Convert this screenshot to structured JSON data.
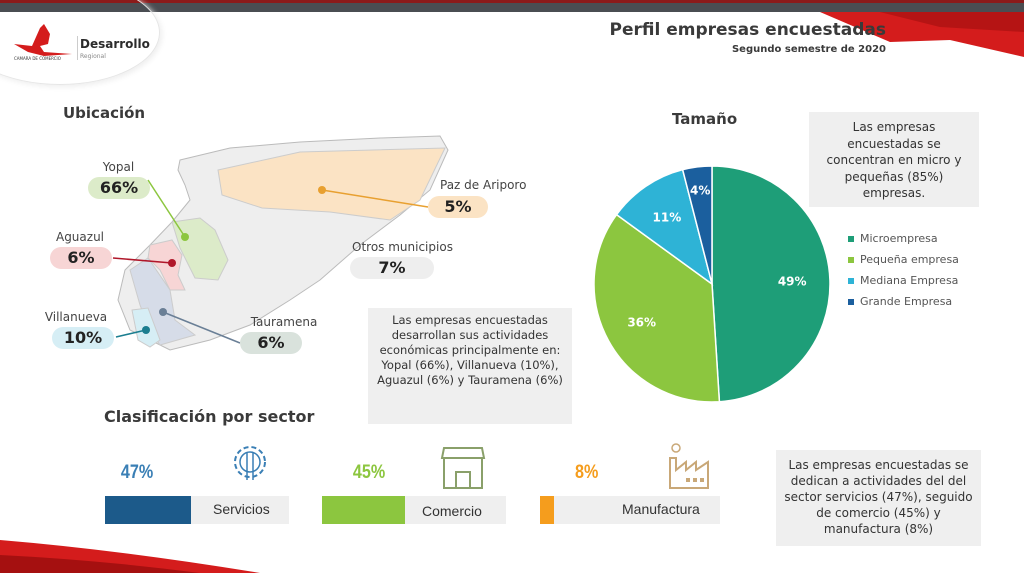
{
  "header": {
    "title": "Perfil empresas encuestadas",
    "subtitle": "Segundo semestre de 2020",
    "logo_text": "Desarrollo",
    "logo_sub": "Regional",
    "logo_org": "CAMARA DE COMERCIO CASANARE"
  },
  "ubicacion": {
    "title": "Ubicación",
    "items": [
      {
        "name": "Yopal",
        "value": "66%",
        "color": "#dcebc9"
      },
      {
        "name": "Aguazul",
        "value": "6%",
        "color": "#f7d5d5"
      },
      {
        "name": "Villanueva",
        "value": "10%",
        "color": "#d6eef5"
      },
      {
        "name": "Paz de Ariporo",
        "value": "5%",
        "color": "#fbe3c4"
      },
      {
        "name": "Otros municipios",
        "value": "7%",
        "color": "#eeeeee"
      },
      {
        "name": "Tauramena",
        "value": "6%",
        "color": "#d9e2dc"
      }
    ],
    "note": "Las empresas encuestadas desarrollan sus actividades económicas principalmente en: Yopal (66%), Villanueva (10%), Aguazul (6%) y Tauramena (6%)"
  },
  "tamano": {
    "title": "Tamaño",
    "note": "Las empresas encuestadas se concentran en micro y pequeñas (85%) empresas."
  },
  "chart_data": {
    "type": "pie",
    "title": "Tamaño",
    "categories": [
      "Microempresa",
      "Pequeña empresa",
      "Mediana Empresa",
      "Grande Empresa"
    ],
    "values": [
      49,
      36,
      11,
      4
    ],
    "labels": [
      "49%",
      "36%",
      "11%",
      "4%"
    ],
    "colors": [
      "#1e9e78",
      "#8cc63f",
      "#2eb3d6",
      "#1b5f9e"
    ],
    "legend_position": "right"
  },
  "sector": {
    "title": "Clasificación por sector",
    "items": [
      {
        "value": "47%",
        "fraction": 0.47,
        "label": "Servicios",
        "color": "#1c5a8a",
        "text_color": "#3a7fb5",
        "icon": "gear-wrench-icon"
      },
      {
        "value": "45%",
        "fraction": 0.45,
        "label": "Comercio",
        "color": "#8cc63f",
        "text_color": "#8cc63f",
        "icon": "storefront-icon"
      },
      {
        "value": "8%",
        "fraction": 0.08,
        "label": "Manufactura",
        "color": "#f59d1d",
        "text_color": "#f59d1d",
        "icon": "factory-icon"
      }
    ],
    "note": "Las empresas encuestadas se dedican a actividades del del sector servicios (47%), seguido de comercio (45%) y manufactura (8%)"
  }
}
